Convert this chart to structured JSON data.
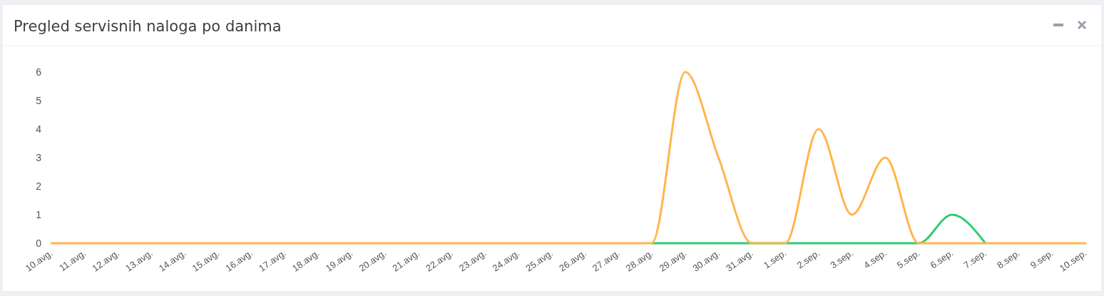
{
  "chart_data": {
    "type": "line",
    "title": "Pregled servisnih naloga po danima",
    "categories": [
      "10.avg.",
      "11.avg.",
      "12.avg.",
      "13.avg.",
      "14.avg.",
      "15.avg.",
      "16.avg.",
      "17.avg.",
      "18.avg.",
      "19.avg.",
      "20.avg.",
      "21.avg.",
      "22.avg.",
      "23.avg.",
      "24.avg.",
      "25.avg.",
      "26.avg.",
      "27.avg.",
      "28.avg.",
      "29.avg.",
      "30.avg.",
      "31.avg.",
      "1.sep.",
      "2.sep.",
      "3.sep.",
      "4.sep.",
      "5.sep.",
      "6.sep.",
      "7.sep.",
      "8.sep.",
      "9.sep.",
      "10.sep."
    ],
    "series": [
      {
        "color": "#2ecc71",
        "values": [
          null,
          null,
          null,
          null,
          null,
          null,
          null,
          null,
          null,
          null,
          null,
          null,
          null,
          null,
          null,
          null,
          null,
          null,
          0,
          0,
          0,
          0,
          0,
          0,
          0,
          0,
          0,
          1,
          0,
          null,
          null,
          null
        ]
      },
      {
        "color": "#ffb64d",
        "values": [
          0,
          0,
          0,
          0,
          0,
          0,
          0,
          0,
          0,
          0,
          0,
          0,
          0,
          0,
          0,
          0,
          0,
          0,
          0,
          6,
          3,
          0,
          0,
          4,
          1,
          3,
          0,
          0,
          0,
          0,
          0,
          0
        ]
      }
    ],
    "ylim": [
      0,
      6
    ],
    "yticks": [
      0,
      1,
      2,
      3,
      4,
      5,
      6
    ],
    "grid": false,
    "marker": "none",
    "line_style": "solid"
  }
}
